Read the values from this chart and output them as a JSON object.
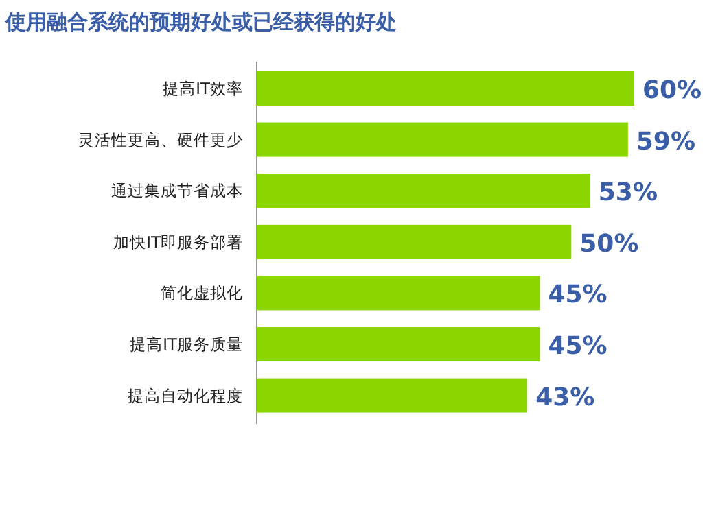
{
  "chart_data": {
    "type": "bar",
    "orientation": "horizontal",
    "title": "使用融合系统的预期好处或已经获得的好处",
    "categories": [
      "提高IT效率",
      "灵活性更高、硬件更少",
      "通过集成节省成本",
      "加快IT即服务部署",
      "简化虚拟化",
      "提高IT服务质量",
      "提高自动化程度"
    ],
    "values": [
      60,
      59,
      53,
      50,
      45,
      45,
      43
    ],
    "value_labels": [
      "60%",
      "59%",
      "53%",
      "50%",
      "45%",
      "45%",
      "43%"
    ],
    "color": "#8bd600",
    "xlim": [
      0,
      60
    ]
  }
}
